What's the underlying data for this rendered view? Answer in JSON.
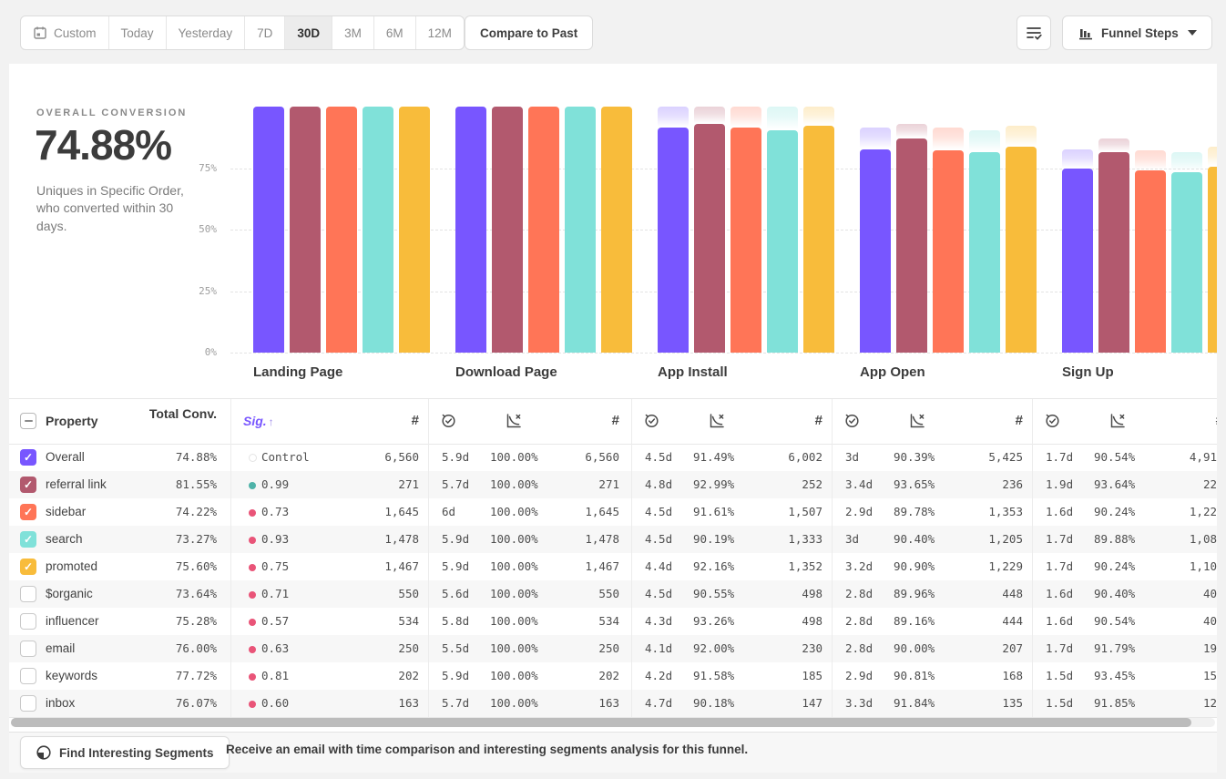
{
  "toolbar": {
    "date_ranges": [
      "Custom",
      "Today",
      "Yesterday",
      "7D",
      "30D",
      "3M",
      "6M",
      "12M"
    ],
    "active_range": "30D",
    "compare_to_past": "Compare to Past",
    "funnel_steps": "Funnel Steps"
  },
  "summary": {
    "title": "OVERALL CONVERSION",
    "value": "74.88%",
    "description": "Uniques in Specific Order, who converted within 30 days."
  },
  "chart_data": {
    "type": "bar",
    "categories": [
      "Landing Page",
      "Download Page",
      "App Install",
      "App Open",
      "Sign Up"
    ],
    "series": [
      {
        "name": "Overall",
        "color": "#7856FF",
        "values": [
          100,
          100,
          91.49,
          82.7,
          74.88
        ]
      },
      {
        "name": "referral link",
        "color": "#B2596E",
        "values": [
          100,
          100,
          92.99,
          87.08,
          81.55
        ]
      },
      {
        "name": "sidebar",
        "color": "#FF7557",
        "values": [
          100,
          100,
          91.61,
          82.25,
          74.22
        ]
      },
      {
        "name": "search",
        "color": "#80E1D9",
        "values": [
          100,
          100,
          90.19,
          81.53,
          73.27
        ]
      },
      {
        "name": "promoted",
        "color": "#F8BC3B",
        "values": [
          100,
          100,
          92.16,
          83.77,
          75.6
        ]
      }
    ],
    "y_ticks": [
      "75%",
      "50%",
      "25%",
      "0%"
    ],
    "ylim": [
      0,
      100
    ],
    "grid": "dashed-horizontal",
    "note": "light hatched cap above each bar = drop-off from previous step"
  },
  "table": {
    "headers": {
      "property": "Property",
      "total_conv": "Total Conv.",
      "sig": "Sig.",
      "count_symbol": "#"
    },
    "rows": [
      {
        "property": "Overall",
        "checked": true,
        "checkbox_color": "#7856FF",
        "total_conv": "74.88%",
        "sig": "Control",
        "sig_dot": "control",
        "steps": [
          {
            "count": "6,560"
          },
          {
            "time": "5.9d",
            "pct": "100.00%",
            "count": "6,560"
          },
          {
            "time": "4.5d",
            "pct": "91.49%",
            "count": "6,002"
          },
          {
            "time": "3d",
            "pct": "90.39%",
            "count": "5,425"
          },
          {
            "time": "1.7d",
            "pct": "90.54%",
            "count": "4,91"
          }
        ]
      },
      {
        "property": "referral link",
        "checked": true,
        "checkbox_color": "#B2596E",
        "total_conv": "81.55%",
        "sig": "0.99",
        "sig_dot": "teal",
        "steps": [
          {
            "count": "271"
          },
          {
            "time": "5.7d",
            "pct": "100.00%",
            "count": "271"
          },
          {
            "time": "4.8d",
            "pct": "92.99%",
            "count": "252"
          },
          {
            "time": "3.4d",
            "pct": "93.65%",
            "count": "236"
          },
          {
            "time": "1.9d",
            "pct": "93.64%",
            "count": "22"
          }
        ]
      },
      {
        "property": "sidebar",
        "checked": true,
        "checkbox_color": "#FF7557",
        "total_conv": "74.22%",
        "sig": "0.73",
        "sig_dot": "pink",
        "steps": [
          {
            "count": "1,645"
          },
          {
            "time": "6d",
            "pct": "100.00%",
            "count": "1,645"
          },
          {
            "time": "4.5d",
            "pct": "91.61%",
            "count": "1,507"
          },
          {
            "time": "2.9d",
            "pct": "89.78%",
            "count": "1,353"
          },
          {
            "time": "1.6d",
            "pct": "90.24%",
            "count": "1,22"
          }
        ]
      },
      {
        "property": "search",
        "checked": true,
        "checkbox_color": "#80E1D9",
        "total_conv": "73.27%",
        "sig": "0.93",
        "sig_dot": "pink",
        "steps": [
          {
            "count": "1,478"
          },
          {
            "time": "5.9d",
            "pct": "100.00%",
            "count": "1,478"
          },
          {
            "time": "4.5d",
            "pct": "90.19%",
            "count": "1,333"
          },
          {
            "time": "3d",
            "pct": "90.40%",
            "count": "1,205"
          },
          {
            "time": "1.7d",
            "pct": "89.88%",
            "count": "1,08"
          }
        ]
      },
      {
        "property": "promoted",
        "checked": true,
        "checkbox_color": "#F8BC3B",
        "total_conv": "75.60%",
        "sig": "0.75",
        "sig_dot": "pink",
        "steps": [
          {
            "count": "1,467"
          },
          {
            "time": "5.9d",
            "pct": "100.00%",
            "count": "1,467"
          },
          {
            "time": "4.4d",
            "pct": "92.16%",
            "count": "1,352"
          },
          {
            "time": "3.2d",
            "pct": "90.90%",
            "count": "1,229"
          },
          {
            "time": "1.7d",
            "pct": "90.24%",
            "count": "1,10"
          }
        ]
      },
      {
        "property": "$organic",
        "checked": false,
        "checkbox_color": "",
        "total_conv": "73.64%",
        "sig": "0.71",
        "sig_dot": "pink",
        "steps": [
          {
            "count": "550"
          },
          {
            "time": "5.6d",
            "pct": "100.00%",
            "count": "550"
          },
          {
            "time": "4.5d",
            "pct": "90.55%",
            "count": "498"
          },
          {
            "time": "2.8d",
            "pct": "89.96%",
            "count": "448"
          },
          {
            "time": "1.6d",
            "pct": "90.40%",
            "count": "40"
          }
        ]
      },
      {
        "property": "influencer",
        "checked": false,
        "checkbox_color": "",
        "total_conv": "75.28%",
        "sig": "0.57",
        "sig_dot": "pink",
        "steps": [
          {
            "count": "534"
          },
          {
            "time": "5.8d",
            "pct": "100.00%",
            "count": "534"
          },
          {
            "time": "4.3d",
            "pct": "93.26%",
            "count": "498"
          },
          {
            "time": "2.8d",
            "pct": "89.16%",
            "count": "444"
          },
          {
            "time": "1.6d",
            "pct": "90.54%",
            "count": "40"
          }
        ]
      },
      {
        "property": "email",
        "checked": false,
        "checkbox_color": "",
        "total_conv": "76.00%",
        "sig": "0.63",
        "sig_dot": "pink",
        "steps": [
          {
            "count": "250"
          },
          {
            "time": "5.5d",
            "pct": "100.00%",
            "count": "250"
          },
          {
            "time": "4.1d",
            "pct": "92.00%",
            "count": "230"
          },
          {
            "time": "2.8d",
            "pct": "90.00%",
            "count": "207"
          },
          {
            "time": "1.7d",
            "pct": "91.79%",
            "count": "19"
          }
        ]
      },
      {
        "property": "keywords",
        "checked": false,
        "checkbox_color": "",
        "total_conv": "77.72%",
        "sig": "0.81",
        "sig_dot": "pink",
        "steps": [
          {
            "count": "202"
          },
          {
            "time": "5.9d",
            "pct": "100.00%",
            "count": "202"
          },
          {
            "time": "4.2d",
            "pct": "91.58%",
            "count": "185"
          },
          {
            "time": "2.9d",
            "pct": "90.81%",
            "count": "168"
          },
          {
            "time": "1.5d",
            "pct": "93.45%",
            "count": "15"
          }
        ]
      },
      {
        "property": "inbox",
        "checked": false,
        "checkbox_color": "",
        "total_conv": "76.07%",
        "sig": "0.60",
        "sig_dot": "pink",
        "steps": [
          {
            "count": "163"
          },
          {
            "time": "5.7d",
            "pct": "100.00%",
            "count": "163"
          },
          {
            "time": "4.7d",
            "pct": "90.18%",
            "count": "147"
          },
          {
            "time": "3.3d",
            "pct": "91.84%",
            "count": "135"
          },
          {
            "time": "1.5d",
            "pct": "91.85%",
            "count": "12"
          }
        ]
      }
    ]
  },
  "footer": {
    "button": "Find Interesting Segments",
    "message": "Receive an email with time comparison and interesting segments analysis for this funnel."
  },
  "colors": {
    "accent_purple": "#7856FF",
    "sig_dot_pink": "#E95478",
    "sig_dot_teal": "#4FB3A9",
    "scrollbar_thumb": "#bcbcbc"
  }
}
